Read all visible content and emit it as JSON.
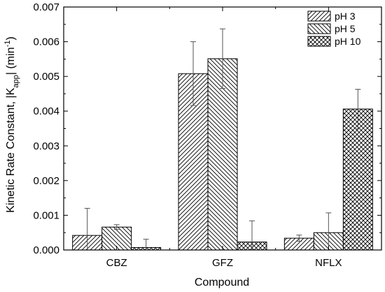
{
  "chart_data": {
    "type": "bar",
    "xlabel": "Compound",
    "ylabel_parts": [
      "Kinetic Rate Constant, |K",
      "app",
      "| (min",
      "-1",
      ")"
    ],
    "categories": [
      "CBZ",
      "GFZ",
      "NFLX"
    ],
    "ylim": [
      0.0,
      0.007
    ],
    "yticks": [
      "0.000",
      "0.001",
      "0.002",
      "0.003",
      "0.004",
      "0.005",
      "0.006",
      "0.007"
    ],
    "grid": false,
    "legend_position": "top-right",
    "series": [
      {
        "name": "pH 3",
        "pattern": "diagonal-up",
        "values": [
          0.00042,
          0.00508,
          0.00034
        ],
        "errors": [
          0.00078,
          0.00092,
          9e-05
        ]
      },
      {
        "name": "pH 5",
        "pattern": "diagonal-down",
        "values": [
          0.00066,
          0.00551,
          0.0005
        ],
        "errors": [
          7e-05,
          0.00086,
          0.00057
        ]
      },
      {
        "name": "pH 10",
        "pattern": "crosshatch",
        "values": [
          7e-05,
          0.00023,
          0.00406
        ],
        "errors": [
          0.00024,
          0.00061,
          0.00057
        ]
      }
    ]
  }
}
